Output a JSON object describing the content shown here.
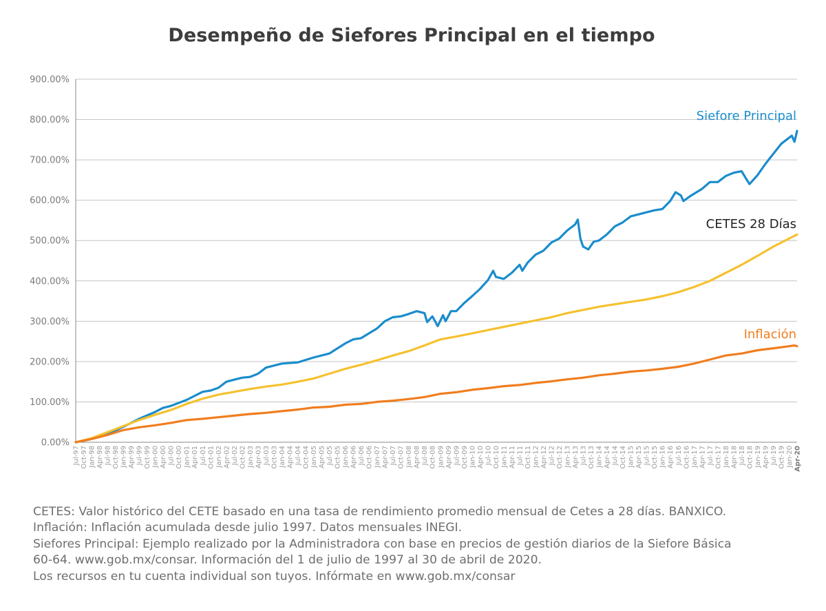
{
  "chart_data": {
    "type": "line",
    "title": "Desempeño de Siefores Principal en el tiempo",
    "ylim": [
      0,
      900
    ],
    "y_ticks": [
      "0.00%",
      "100.00%",
      "200.00%",
      "300.00%",
      "400.00%",
      "500.00%",
      "600.00%",
      "700.00%",
      "800.00%",
      "900.00%"
    ],
    "y_tick_values": [
      0,
      100,
      200,
      300,
      400,
      500,
      600,
      700,
      800,
      900
    ],
    "grid": "horizontal",
    "x_start": "Jul-97",
    "x_end": "Apr-20",
    "x_tick_labels": [
      "Jul-97",
      "Oct-97",
      "Jan-98",
      "Apr-98",
      "Jul-98",
      "Oct-98",
      "Jan-99",
      "Apr-99",
      "Jul-99",
      "Oct-99",
      "Jan-00",
      "Apr-00",
      "Jul-00",
      "Oct-00",
      "Jan-01",
      "Apr-01",
      "Jul-01",
      "Oct-01",
      "Jan-02",
      "Apr-02",
      "Jul-02",
      "Oct-02",
      "Jan-03",
      "Apr-03",
      "Jul-03",
      "Oct-03",
      "Jan-04",
      "Apr-04",
      "Jul-04",
      "Oct-04",
      "Jan-05",
      "Apr-05",
      "Jul-05",
      "Oct-05",
      "Jan-06",
      "Apr-06",
      "Jul-06",
      "Oct-06",
      "Jan-07",
      "Apr-07",
      "Jul-07",
      "Oct-07",
      "Jan-08",
      "Apr-08",
      "Jul-08",
      "Oct-08",
      "Jan-09",
      "Apr-09",
      "Jul-09",
      "Oct-09",
      "Jan-10",
      "Apr-10",
      "Jul-10",
      "Oct-10",
      "Jan-11",
      "Apr-11",
      "Jul-11",
      "Oct-11",
      "Jan-12",
      "Apr-12",
      "Jul-12",
      "Oct-12",
      "Jan-13",
      "Apr-13",
      "Jul-13",
      "Oct-13",
      "Jan-14",
      "Apr-14",
      "Jul-14",
      "Oct-14",
      "Jan-15",
      "Apr-15",
      "Jul-15",
      "Oct-15",
      "Jan-16",
      "Apr-16",
      "Jul-16",
      "Oct-16",
      "Jan-17",
      "Apr-17",
      "Jul-17",
      "Oct-17",
      "Jan-18",
      "Apr-18",
      "Jul-18",
      "Oct-18",
      "Jan-19",
      "Apr-19",
      "Jul-19",
      "Oct-19",
      "Jan-20",
      "Apr-20"
    ],
    "series": [
      {
        "name": "Siefore Principal",
        "color": "#1a8ccc",
        "points": [
          [
            "Jul-97",
            0
          ],
          [
            "Jan-98",
            8
          ],
          [
            "Jul-98",
            20
          ],
          [
            "Jan-99",
            38
          ],
          [
            "Jul-99",
            58
          ],
          [
            "Jan-00",
            75
          ],
          [
            "Apr-00",
            85
          ],
          [
            "Jul-00",
            90
          ],
          [
            "Jan-01",
            105
          ],
          [
            "Jul-01",
            125
          ],
          [
            "Oct-01",
            128
          ],
          [
            "Jan-02",
            135
          ],
          [
            "Apr-02",
            150
          ],
          [
            "Jul-02",
            155
          ],
          [
            "Oct-02",
            160
          ],
          [
            "Jan-03",
            162
          ],
          [
            "Apr-03",
            170
          ],
          [
            "Jul-03",
            185
          ],
          [
            "Jan-04",
            195
          ],
          [
            "Jul-04",
            198
          ],
          [
            "Jan-05",
            210
          ],
          [
            "Jul-05",
            220
          ],
          [
            "Jan-06",
            245
          ],
          [
            "Apr-06",
            255
          ],
          [
            "Jul-06",
            258
          ],
          [
            "Jan-07",
            282
          ],
          [
            "Apr-07",
            300
          ],
          [
            "Jul-07",
            310
          ],
          [
            "Oct-07",
            312
          ],
          [
            "Jan-08",
            318
          ],
          [
            "Apr-08",
            325
          ],
          [
            "Jul-08",
            320
          ],
          [
            "Aug-08",
            298
          ],
          [
            "Oct-08",
            312
          ],
          [
            "Dec-08",
            288
          ],
          [
            "Feb-09",
            315
          ],
          [
            "Mar-09",
            300
          ],
          [
            "May-09",
            325
          ],
          [
            "Jul-09",
            325
          ],
          [
            "Oct-09",
            345
          ],
          [
            "Jan-10",
            362
          ],
          [
            "Apr-10",
            380
          ],
          [
            "Jul-10",
            402
          ],
          [
            "Sep-10",
            425
          ],
          [
            "Oct-10",
            410
          ],
          [
            "Jan-11",
            405
          ],
          [
            "Apr-11",
            420
          ],
          [
            "Jul-11",
            440
          ],
          [
            "Aug-11",
            425
          ],
          [
            "Oct-11",
            445
          ],
          [
            "Jan-12",
            465
          ],
          [
            "Apr-12",
            475
          ],
          [
            "Jul-12",
            495
          ],
          [
            "Oct-12",
            505
          ],
          [
            "Jan-13",
            525
          ],
          [
            "Apr-13",
            540
          ],
          [
            "May-13",
            552
          ],
          [
            "Jun-13",
            505
          ],
          [
            "Jul-13",
            485
          ],
          [
            "Sep-13",
            478
          ],
          [
            "Nov-13",
            497
          ],
          [
            "Jan-14",
            500
          ],
          [
            "Apr-14",
            515
          ],
          [
            "Jul-14",
            535
          ],
          [
            "Oct-14",
            545
          ],
          [
            "Jan-15",
            560
          ],
          [
            "Apr-15",
            565
          ],
          [
            "Jul-15",
            570
          ],
          [
            "Oct-15",
            575
          ],
          [
            "Jan-16",
            578
          ],
          [
            "Apr-16",
            598
          ],
          [
            "Jun-16",
            620
          ],
          [
            "Aug-16",
            612
          ],
          [
            "Sep-16",
            598
          ],
          [
            "Dec-16",
            612
          ],
          [
            "Apr-17",
            628
          ],
          [
            "Jul-17",
            645
          ],
          [
            "Oct-17",
            645
          ],
          [
            "Jan-18",
            660
          ],
          [
            "Apr-18",
            668
          ],
          [
            "Jul-18",
            672
          ],
          [
            "Sep-18",
            650
          ],
          [
            "Oct-18",
            640
          ],
          [
            "Jan-19",
            662
          ],
          [
            "Apr-19",
            690
          ],
          [
            "Jul-19",
            715
          ],
          [
            "Oct-19",
            740
          ],
          [
            "Jan-20",
            755
          ],
          [
            "Feb-20",
            760
          ],
          [
            "Mar-20",
            745
          ],
          [
            "Apr-20",
            772
          ]
        ]
      },
      {
        "name": "CETES 28 Días",
        "color": "#f5c12e",
        "points": [
          [
            "Jul-97",
            0
          ],
          [
            "Jan-98",
            10
          ],
          [
            "Jul-98",
            25
          ],
          [
            "Jan-99",
            40
          ],
          [
            "Jul-99",
            55
          ],
          [
            "Jan-00",
            68
          ],
          [
            "Jul-00",
            80
          ],
          [
            "Jan-01",
            95
          ],
          [
            "Jul-01",
            108
          ],
          [
            "Jan-02",
            118
          ],
          [
            "Jul-02",
            125
          ],
          [
            "Jan-03",
            132
          ],
          [
            "Jul-03",
            138
          ],
          [
            "Jan-04",
            143
          ],
          [
            "Jul-04",
            150
          ],
          [
            "Jan-05",
            158
          ],
          [
            "Jul-05",
            170
          ],
          [
            "Jan-06",
            182
          ],
          [
            "Jul-06",
            192
          ],
          [
            "Jan-07",
            203
          ],
          [
            "Jul-07",
            215
          ],
          [
            "Jan-08",
            226
          ],
          [
            "Jul-08",
            240
          ],
          [
            "Jan-09",
            255
          ],
          [
            "Jul-09",
            262
          ],
          [
            "Jan-10",
            270
          ],
          [
            "Jul-10",
            278
          ],
          [
            "Jan-11",
            286
          ],
          [
            "Jul-11",
            294
          ],
          [
            "Jan-12",
            302
          ],
          [
            "Jul-12",
            310
          ],
          [
            "Jan-13",
            320
          ],
          [
            "Jul-13",
            328
          ],
          [
            "Jan-14",
            336
          ],
          [
            "Jul-14",
            342
          ],
          [
            "Jan-15",
            348
          ],
          [
            "Jul-15",
            354
          ],
          [
            "Jan-16",
            362
          ],
          [
            "Jul-16",
            372
          ],
          [
            "Jan-17",
            385
          ],
          [
            "Jul-17",
            400
          ],
          [
            "Jan-18",
            420
          ],
          [
            "Jul-18",
            440
          ],
          [
            "Jan-19",
            462
          ],
          [
            "Jul-19",
            485
          ],
          [
            "Jan-20",
            505
          ],
          [
            "Apr-20",
            515
          ]
        ]
      },
      {
        "name": "Inflación",
        "color": "#f07d1e",
        "points": [
          [
            "Jul-97",
            0
          ],
          [
            "Jan-98",
            8
          ],
          [
            "Jul-98",
            18
          ],
          [
            "Jan-99",
            30
          ],
          [
            "Jul-99",
            37
          ],
          [
            "Jan-00",
            42
          ],
          [
            "Jul-00",
            48
          ],
          [
            "Jan-01",
            55
          ],
          [
            "Jul-01",
            58
          ],
          [
            "Jan-02",
            62
          ],
          [
            "Jul-02",
            66
          ],
          [
            "Jan-03",
            70
          ],
          [
            "Jul-03",
            73
          ],
          [
            "Jan-04",
            77
          ],
          [
            "Jul-04",
            81
          ],
          [
            "Jan-05",
            86
          ],
          [
            "Jul-05",
            88
          ],
          [
            "Jan-06",
            93
          ],
          [
            "Jul-06",
            95
          ],
          [
            "Jan-07",
            100
          ],
          [
            "Jul-07",
            103
          ],
          [
            "Jan-08",
            107
          ],
          [
            "Jul-08",
            112
          ],
          [
            "Jan-09",
            120
          ],
          [
            "Jul-09",
            124
          ],
          [
            "Jan-10",
            130
          ],
          [
            "Jul-10",
            134
          ],
          [
            "Jan-11",
            139
          ],
          [
            "Jul-11",
            142
          ],
          [
            "Jan-12",
            147
          ],
          [
            "Jul-12",
            151
          ],
          [
            "Jan-13",
            156
          ],
          [
            "Jul-13",
            160
          ],
          [
            "Jan-14",
            166
          ],
          [
            "Jul-14",
            170
          ],
          [
            "Jan-15",
            175
          ],
          [
            "Jul-15",
            178
          ],
          [
            "Jan-16",
            182
          ],
          [
            "Jul-16",
            187
          ],
          [
            "Jan-17",
            195
          ],
          [
            "Jul-17",
            205
          ],
          [
            "Jan-18",
            215
          ],
          [
            "Jul-18",
            220
          ],
          [
            "Jan-19",
            228
          ],
          [
            "Jul-19",
            233
          ],
          [
            "Jan-20",
            238
          ],
          [
            "Mar-20",
            240
          ],
          [
            "Apr-20",
            238
          ]
        ]
      }
    ]
  },
  "notes": [
    "CETES: Valor histórico del CETE basado en una tasa de rendimiento promedio mensual de Cetes a 28 días. BANXICO.",
    "Inflación: Inflación acumulada desde julio 1997. Datos mensuales INEGI.",
    "Siefores Principal: Ejemplo realizado por la Administradora con base en precios de gestión diarios de la Siefore Básica",
    "60-64. www.gob.mx/consar. Información del 1 de julio de 1997 al 30 de abril de 2020.",
    "Los recursos en tu cuenta individual son tuyos. Infórmate en www.gob.mx/consar"
  ]
}
